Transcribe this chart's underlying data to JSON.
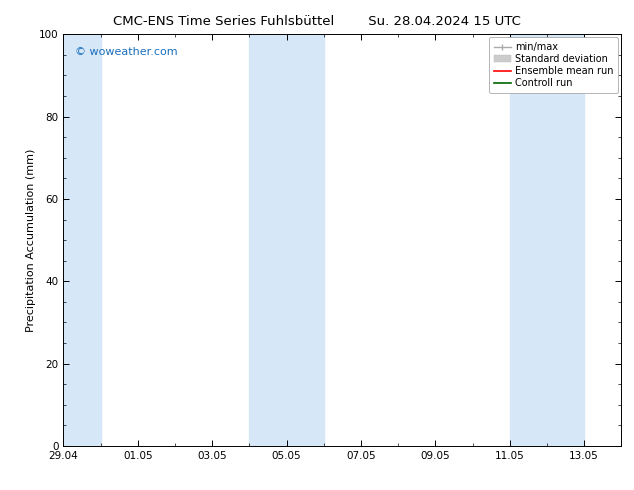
{
  "title_left": "CMC-ENS Time Series Fuhlsbüttel",
  "title_right": "Su. 28.04.2024 15 UTC",
  "ylabel": "Precipitation Accumulation (mm)",
  "ylim": [
    0,
    100
  ],
  "yticks": [
    0,
    20,
    40,
    60,
    80,
    100
  ],
  "xtick_labels": [
    "29.04",
    "01.05",
    "03.05",
    "05.05",
    "07.05",
    "09.05",
    "11.05",
    "13.05"
  ],
  "shaded_color": "#d6e8f7",
  "watermark_text": "© woweather.com",
  "watermark_color": "#1a6ebc",
  "legend_entries": [
    {
      "label": "min/max"
    },
    {
      "label": "Standard deviation"
    },
    {
      "label": "Ensemble mean run"
    },
    {
      "label": "Controll run"
    }
  ],
  "bg_color": "#ffffff",
  "title_fontsize": 9.5,
  "axis_label_fontsize": 8,
  "tick_fontsize": 7.5,
  "legend_fontsize": 7
}
